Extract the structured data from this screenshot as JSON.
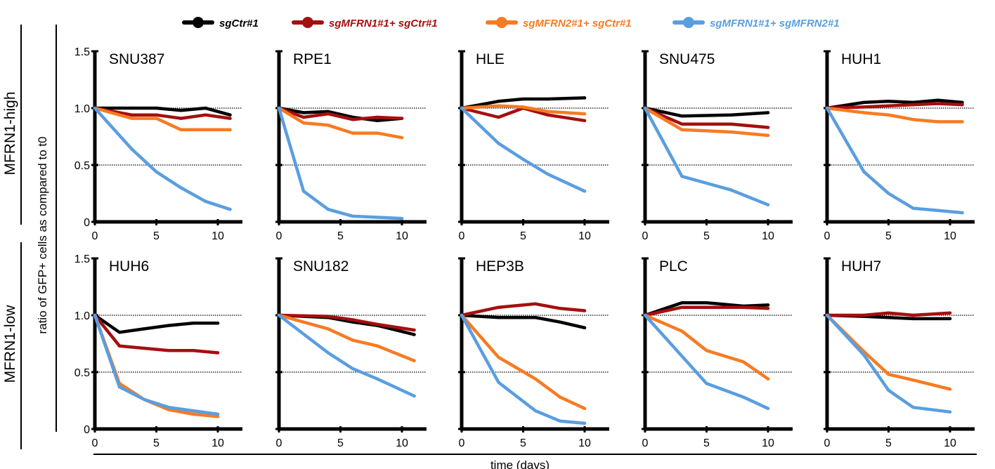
{
  "chart_data": {
    "type": "line",
    "title": "",
    "xlabel": "time (days)",
    "ylabel": "ratio of GFP+ cells as compared to t0",
    "xlim": [
      0,
      12
    ],
    "ylim": [
      0,
      1.5
    ],
    "x_ticks": [
      "0",
      "5",
      "10"
    ],
    "y_ticks": [
      "0",
      "0.5",
      "1.0",
      "1.5"
    ],
    "reference_lines": [
      0.5,
      1.0
    ],
    "groups": [
      "MFRN1-high",
      "MFRN1-low"
    ],
    "legend": [
      {
        "name": "sgCtr#1",
        "color": "#000000"
      },
      {
        "name": "sgMFRN1#1+ sgCtr#1",
        "color": "#a50f0f"
      },
      {
        "name": "sgMFRN2#1+ sgCtr#1",
        "color": "#f77b22"
      },
      {
        "name": "sgMFRN1#1+ sgMFRN2#1",
        "color": "#5a9ee0"
      }
    ],
    "panels": [
      {
        "title": "SNU387",
        "group": "MFRN1-high",
        "series": [
          {
            "name": "sgCtr#1",
            "x": [
              0,
              3,
              5,
              7,
              9,
              11
            ],
            "y": [
              1.0,
              1.0,
              1.0,
              0.98,
              1.0,
              0.94
            ]
          },
          {
            "name": "sgMFRN1#1+ sgCtr#1",
            "x": [
              0,
              3,
              5,
              7,
              9,
              11
            ],
            "y": [
              1.0,
              0.94,
              0.94,
              0.91,
              0.94,
              0.91
            ]
          },
          {
            "name": "sgMFRN2#1+ sgCtr#1",
            "x": [
              0,
              3,
              5,
              7,
              9,
              11
            ],
            "y": [
              1.0,
              0.91,
              0.91,
              0.81,
              0.81,
              0.81
            ]
          },
          {
            "name": "sgMFRN1#1+ sgMFRN2#1",
            "x": [
              0,
              3,
              5,
              7,
              9,
              11
            ],
            "y": [
              1.0,
              0.64,
              0.44,
              0.3,
              0.18,
              0.11
            ]
          }
        ]
      },
      {
        "title": "RPE1",
        "group": "MFRN1-high",
        "series": [
          {
            "name": "sgCtr#1",
            "x": [
              0,
              2,
              4,
              6,
              8,
              10
            ],
            "y": [
              1.0,
              0.96,
              0.97,
              0.92,
              0.89,
              0.91
            ]
          },
          {
            "name": "sgMFRN1#1+ sgCtr#1",
            "x": [
              0,
              2,
              4,
              6,
              8,
              10
            ],
            "y": [
              1.0,
              0.92,
              0.95,
              0.9,
              0.92,
              0.91
            ]
          },
          {
            "name": "sgMFRN2#1+ sgCtr#1",
            "x": [
              0,
              2,
              4,
              6,
              8,
              10
            ],
            "y": [
              1.0,
              0.87,
              0.85,
              0.78,
              0.78,
              0.74
            ]
          },
          {
            "name": "sgMFRN1#1+ sgMFRN2#1",
            "x": [
              0,
              2,
              4,
              6,
              8,
              10
            ],
            "y": [
              1.0,
              0.27,
              0.11,
              0.05,
              0.04,
              0.03
            ]
          }
        ]
      },
      {
        "title": "HLE",
        "group": "MFRN1-high",
        "series": [
          {
            "name": "sgCtr#1",
            "x": [
              0,
              3,
              5,
              7,
              10
            ],
            "y": [
              1.0,
              1.06,
              1.08,
              1.08,
              1.09
            ]
          },
          {
            "name": "sgMFRN1#1+ sgCtr#1",
            "x": [
              0,
              3,
              5,
              7,
              10
            ],
            "y": [
              1.0,
              0.92,
              1.0,
              0.94,
              0.89
            ]
          },
          {
            "name": "sgMFRN2#1+ sgCtr#1",
            "x": [
              0,
              3,
              5,
              7,
              10
            ],
            "y": [
              1.0,
              1.02,
              1.01,
              0.97,
              0.95
            ]
          },
          {
            "name": "sgMFRN1#1+ sgMFRN2#1",
            "x": [
              0,
              3,
              5,
              7,
              10
            ],
            "y": [
              1.0,
              0.69,
              0.55,
              0.42,
              0.27
            ]
          }
        ]
      },
      {
        "title": "SNU475",
        "group": "MFRN1-high",
        "series": [
          {
            "name": "sgCtr#1",
            "x": [
              0,
              3,
              7,
              10
            ],
            "y": [
              1.0,
              0.93,
              0.94,
              0.96
            ]
          },
          {
            "name": "sgMFRN1#1+ sgCtr#1",
            "x": [
              0,
              3,
              7,
              10
            ],
            "y": [
              1.0,
              0.86,
              0.86,
              0.83
            ]
          },
          {
            "name": "sgMFRN2#1+ sgCtr#1",
            "x": [
              0,
              3,
              7,
              10
            ],
            "y": [
              1.0,
              0.81,
              0.79,
              0.76
            ]
          },
          {
            "name": "sgMFRN1#1+ sgMFRN2#1",
            "x": [
              0,
              3,
              7,
              10
            ],
            "y": [
              1.0,
              0.4,
              0.28,
              0.15
            ]
          }
        ]
      },
      {
        "title": "HUH1",
        "group": "MFRN1-high",
        "series": [
          {
            "name": "sgCtr#1",
            "x": [
              0,
              3,
              5,
              7,
              9,
              11
            ],
            "y": [
              1.0,
              1.05,
              1.06,
              1.05,
              1.07,
              1.05
            ]
          },
          {
            "name": "sgMFRN1#1+ sgCtr#1",
            "x": [
              0,
              3,
              5,
              7,
              9,
              11
            ],
            "y": [
              1.0,
              1.01,
              1.02,
              1.03,
              1.04,
              1.03
            ]
          },
          {
            "name": "sgMFRN2#1+ sgCtr#1",
            "x": [
              0,
              3,
              5,
              7,
              9,
              11
            ],
            "y": [
              1.0,
              0.96,
              0.94,
              0.9,
              0.88,
              0.88
            ]
          },
          {
            "name": "sgMFRN1#1+ sgMFRN2#1",
            "x": [
              0,
              3,
              5,
              7,
              9,
              11
            ],
            "y": [
              1.0,
              0.44,
              0.25,
              0.12,
              0.1,
              0.08
            ]
          }
        ]
      },
      {
        "title": "HUH6",
        "group": "MFRN1-low",
        "series": [
          {
            "name": "sgCtr#1",
            "x": [
              0,
              2,
              4,
              6,
              8,
              10
            ],
            "y": [
              1.0,
              0.85,
              0.88,
              0.91,
              0.93,
              0.93
            ]
          },
          {
            "name": "sgMFRN1#1+ sgCtr#1",
            "x": [
              0,
              2,
              4,
              6,
              8,
              10
            ],
            "y": [
              1.0,
              0.73,
              0.71,
              0.69,
              0.69,
              0.67
            ]
          },
          {
            "name": "sgMFRN2#1+ sgCtr#1",
            "x": [
              0,
              2,
              4,
              6,
              8,
              10
            ],
            "y": [
              1.0,
              0.4,
              0.26,
              0.17,
              0.13,
              0.11
            ]
          },
          {
            "name": "sgMFRN1#1+ sgMFRN2#1",
            "x": [
              0,
              2,
              4,
              6,
              8,
              10
            ],
            "y": [
              1.0,
              0.37,
              0.26,
              0.19,
              0.16,
              0.13
            ]
          }
        ]
      },
      {
        "title": "SNU182",
        "group": "MFRN1-low",
        "series": [
          {
            "name": "sgCtr#1",
            "x": [
              0,
              4,
              6,
              8,
              11
            ],
            "y": [
              1.0,
              0.98,
              0.94,
              0.91,
              0.83
            ]
          },
          {
            "name": "sgMFRN1#1+ sgCtr#1",
            "x": [
              0,
              4,
              6,
              8,
              11
            ],
            "y": [
              1.0,
              0.99,
              0.96,
              0.92,
              0.87
            ]
          },
          {
            "name": "sgMFRN2#1+ sgCtr#1",
            "x": [
              0,
              4,
              6,
              8,
              11
            ],
            "y": [
              1.0,
              0.88,
              0.78,
              0.73,
              0.6
            ]
          },
          {
            "name": "sgMFRN1#1+ sgMFRN2#1",
            "x": [
              0,
              4,
              6,
              8,
              11
            ],
            "y": [
              1.0,
              0.67,
              0.53,
              0.44,
              0.29
            ]
          }
        ]
      },
      {
        "title": "HEP3B",
        "group": "MFRN1-low",
        "series": [
          {
            "name": "sgCtr#1",
            "x": [
              0,
              3,
              6,
              8,
              10
            ],
            "y": [
              1.0,
              0.98,
              0.98,
              0.94,
              0.89
            ]
          },
          {
            "name": "sgMFRN1#1+ sgCtr#1",
            "x": [
              0,
              3,
              6,
              8,
              10
            ],
            "y": [
              1.0,
              1.07,
              1.1,
              1.06,
              1.04
            ]
          },
          {
            "name": "sgMFRN2#1+ sgCtr#1",
            "x": [
              0,
              3,
              6,
              8,
              10
            ],
            "y": [
              1.0,
              0.63,
              0.44,
              0.28,
              0.18
            ]
          },
          {
            "name": "sgMFRN1#1+ sgMFRN2#1",
            "x": [
              0,
              3,
              6,
              8,
              10
            ],
            "y": [
              1.0,
              0.41,
              0.16,
              0.07,
              0.05
            ]
          }
        ]
      },
      {
        "title": "PLC",
        "group": "MFRN1-low",
        "series": [
          {
            "name": "sgCtr#1",
            "x": [
              0,
              3,
              5,
              8,
              10
            ],
            "y": [
              1.0,
              1.11,
              1.11,
              1.08,
              1.09
            ]
          },
          {
            "name": "sgMFRN1#1+ sgCtr#1",
            "x": [
              0,
              3,
              5,
              8,
              10
            ],
            "y": [
              1.0,
              1.07,
              1.07,
              1.07,
              1.06
            ]
          },
          {
            "name": "sgMFRN2#1+ sgCtr#1",
            "x": [
              0,
              3,
              5,
              8,
              10
            ],
            "y": [
              1.0,
              0.86,
              0.69,
              0.59,
              0.44
            ]
          },
          {
            "name": "sgMFRN1#1+ sgMFRN2#1",
            "x": [
              0,
              3,
              5,
              8,
              10
            ],
            "y": [
              1.0,
              0.64,
              0.4,
              0.28,
              0.18
            ]
          }
        ]
      },
      {
        "title": "HUH7",
        "group": "MFRN1-low",
        "series": [
          {
            "name": "sgCtr#1",
            "x": [
              0,
              3,
              5,
              7,
              10
            ],
            "y": [
              1.0,
              0.99,
              0.98,
              0.97,
              0.97
            ]
          },
          {
            "name": "sgMFRN1#1+ sgCtr#1",
            "x": [
              0,
              3,
              5,
              7,
              10
            ],
            "y": [
              1.0,
              1.0,
              1.02,
              1.0,
              1.02
            ]
          },
          {
            "name": "sgMFRN2#1+ sgCtr#1",
            "x": [
              0,
              3,
              5,
              7,
              10
            ],
            "y": [
              1.0,
              0.68,
              0.48,
              0.43,
              0.35
            ]
          },
          {
            "name": "sgMFRN1#1+ sgMFRN2#1",
            "x": [
              0,
              3,
              5,
              7,
              10
            ],
            "y": [
              1.0,
              0.65,
              0.34,
              0.19,
              0.15
            ]
          }
        ]
      }
    ]
  }
}
